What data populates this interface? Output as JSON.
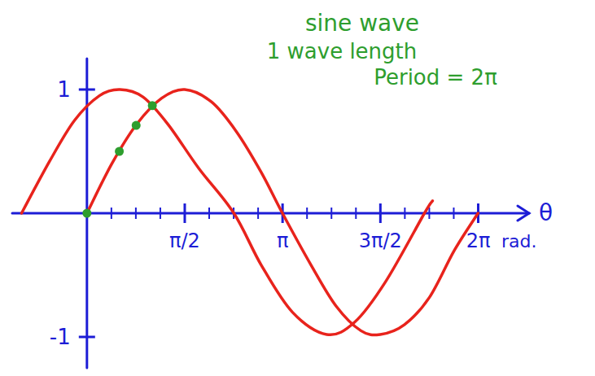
{
  "chart_data": {
    "type": "line",
    "title": "sine wave",
    "annotations": [
      "1 wave length",
      "Period = 2π"
    ],
    "xlabel": "θ",
    "xunit": "rad.",
    "xlim": [
      -1.2,
      7.1
    ],
    "ylim": [
      -1.25,
      1.25
    ],
    "xticks": [
      {
        "value": 1.5708,
        "label": "π/2"
      },
      {
        "value": 3.1416,
        "label": "π"
      },
      {
        "value": 4.7124,
        "label": "3π/2"
      },
      {
        "value": 6.2832,
        "label": "2π"
      }
    ],
    "yticks": [
      {
        "value": -1,
        "label": "-1"
      },
      1
    ],
    "grid": false,
    "series": [
      {
        "type": "line",
        "color": "#e8231c",
        "x": [
          0,
          0.4,
          0.8,
          1.2,
          1.57,
          2.0,
          2.4,
          2.8,
          3.14,
          3.6,
          4.0,
          4.4,
          4.71,
          5.1,
          5.5,
          5.9,
          6.28
        ],
        "values": [
          0,
          0.4,
          0.72,
          0.93,
          1.0,
          0.9,
          0.66,
          0.33,
          0,
          -0.42,
          -0.75,
          -0.95,
          -0.98,
          -0.9,
          -0.68,
          -0.3,
          0
        ]
      },
      {
        "type": "line",
        "color": "#e8231c",
        "x": [
          -1.05,
          -0.6,
          -0.2,
          0.2,
          0.53,
          0.9,
          1.3,
          1.8,
          2.36,
          2.8,
          3.3,
          3.85,
          4.3,
          4.8,
          5.42,
          5.55
        ],
        "values": [
          0,
          0.42,
          0.75,
          0.95,
          1.0,
          0.94,
          0.72,
          0.36,
          0,
          -0.42,
          -0.8,
          -0.98,
          -0.88,
          -0.55,
          0,
          0.1
        ]
      },
      {
        "type": "scatter",
        "color": "#2e9e2e",
        "marker": "circle",
        "x": [
          0,
          0.52,
          0.79,
          1.05
        ],
        "values": [
          0,
          0.5,
          0.71,
          0.87
        ]
      }
    ]
  }
}
